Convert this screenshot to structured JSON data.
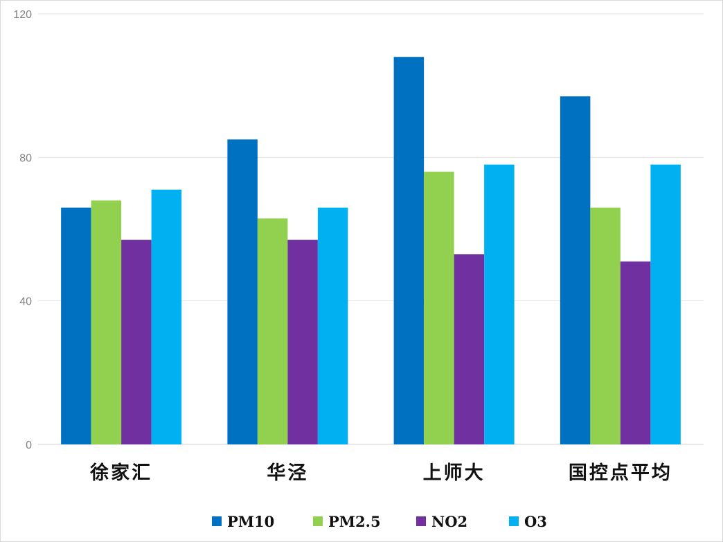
{
  "chart_data": {
    "type": "bar",
    "title": "",
    "xlabel": "",
    "ylabel": "",
    "ylim": [
      0,
      120
    ],
    "yticks": [
      0,
      40,
      80,
      120
    ],
    "grid": true,
    "legend_position": "bottom",
    "categories": [
      "徐家汇",
      "华泾",
      "上师大",
      "国控点平均"
    ],
    "series": [
      {
        "name": "PM10",
        "color": "#0070c0",
        "values": [
          66,
          85,
          108,
          97
        ]
      },
      {
        "name": "PM2.5",
        "color": "#92d050",
        "values": [
          68,
          63,
          76,
          66
        ]
      },
      {
        "name": "NO2",
        "color": "#7030a0",
        "values": [
          57,
          57,
          53,
          51
        ]
      },
      {
        "name": "O3",
        "color": "#00b0f0",
        "values": [
          71,
          66,
          78,
          78
        ]
      }
    ]
  }
}
